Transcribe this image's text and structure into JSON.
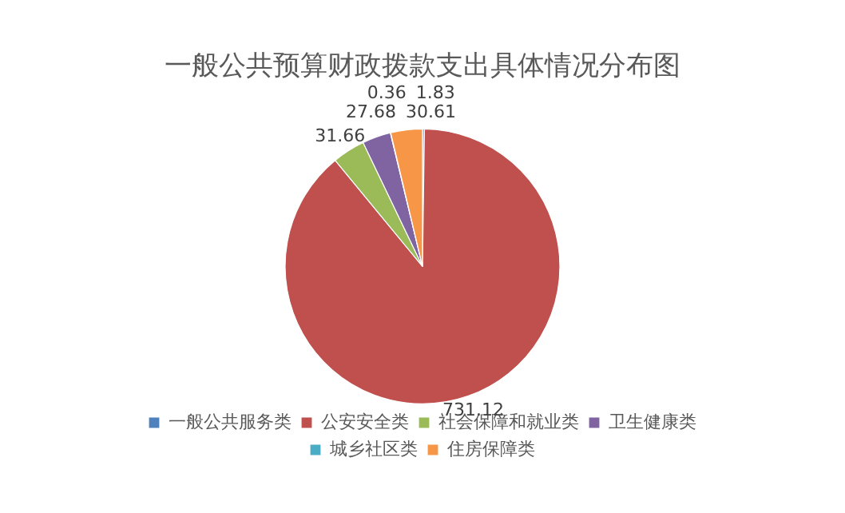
{
  "chart_data": {
    "type": "pie",
    "title": "一般公共预算财政拨款支出具体情况分布图",
    "categories": [
      "一般公共服务类",
      "公安安全类",
      "社会保障和就业类",
      "卫生健康类",
      "城乡社区类",
      "住房保障类"
    ],
    "values": [
      1.83,
      731.12,
      31.66,
      27.68,
      0.36,
      30.61
    ],
    "colors": [
      "#4f81bd",
      "#c0504d",
      "#9bbb59",
      "#8064a2",
      "#4bacc6",
      "#f79646"
    ],
    "data_labels": true,
    "legend": "bottom"
  }
}
